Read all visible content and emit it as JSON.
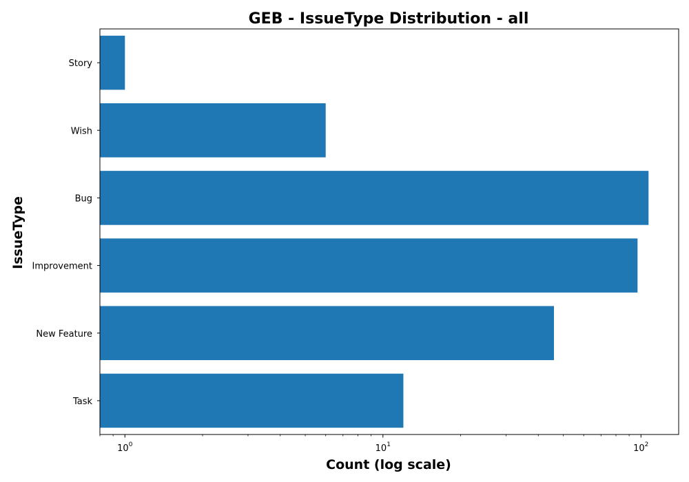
{
  "chart_data": {
    "type": "bar",
    "orientation": "horizontal",
    "title": "GEB - IssueType Distribution - all",
    "xlabel": "Count (log scale)",
    "ylabel": "IssueType",
    "x_scale": "log",
    "xlim": [
      0.8,
      140
    ],
    "x_ticks": [
      1,
      10,
      100
    ],
    "grid": false,
    "bar_color": "#1f77b4",
    "categories": [
      "Story",
      "Wish",
      "Bug",
      "Improvement",
      "New Feature",
      "Task"
    ],
    "values": [
      1,
      6,
      107,
      97,
      46,
      12
    ]
  }
}
